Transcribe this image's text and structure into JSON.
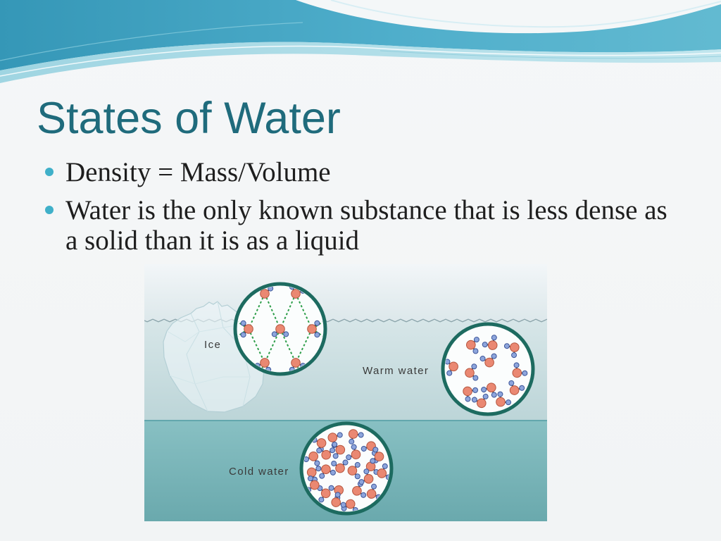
{
  "slide": {
    "title": "States of Water",
    "bullets": [
      {
        "lines": [
          "Density = Mass/Volume"
        ]
      },
      {
        "lines": [
          "Water is the only known substance that is less dense as",
          "a solid than it is as a liquid"
        ]
      }
    ]
  },
  "diagram": {
    "labels": {
      "ice": "Ice",
      "warm_water": "Warm water",
      "cold_water": "Cold water"
    }
  },
  "colors": {
    "title": "#1f6b7c",
    "bullet": "#3fb0c9",
    "circle_border": "#1d6b60",
    "oxygen": "#ea8872",
    "hydrogen": "#8da5dc",
    "hydrogen_bond": "#2e9e4a"
  }
}
